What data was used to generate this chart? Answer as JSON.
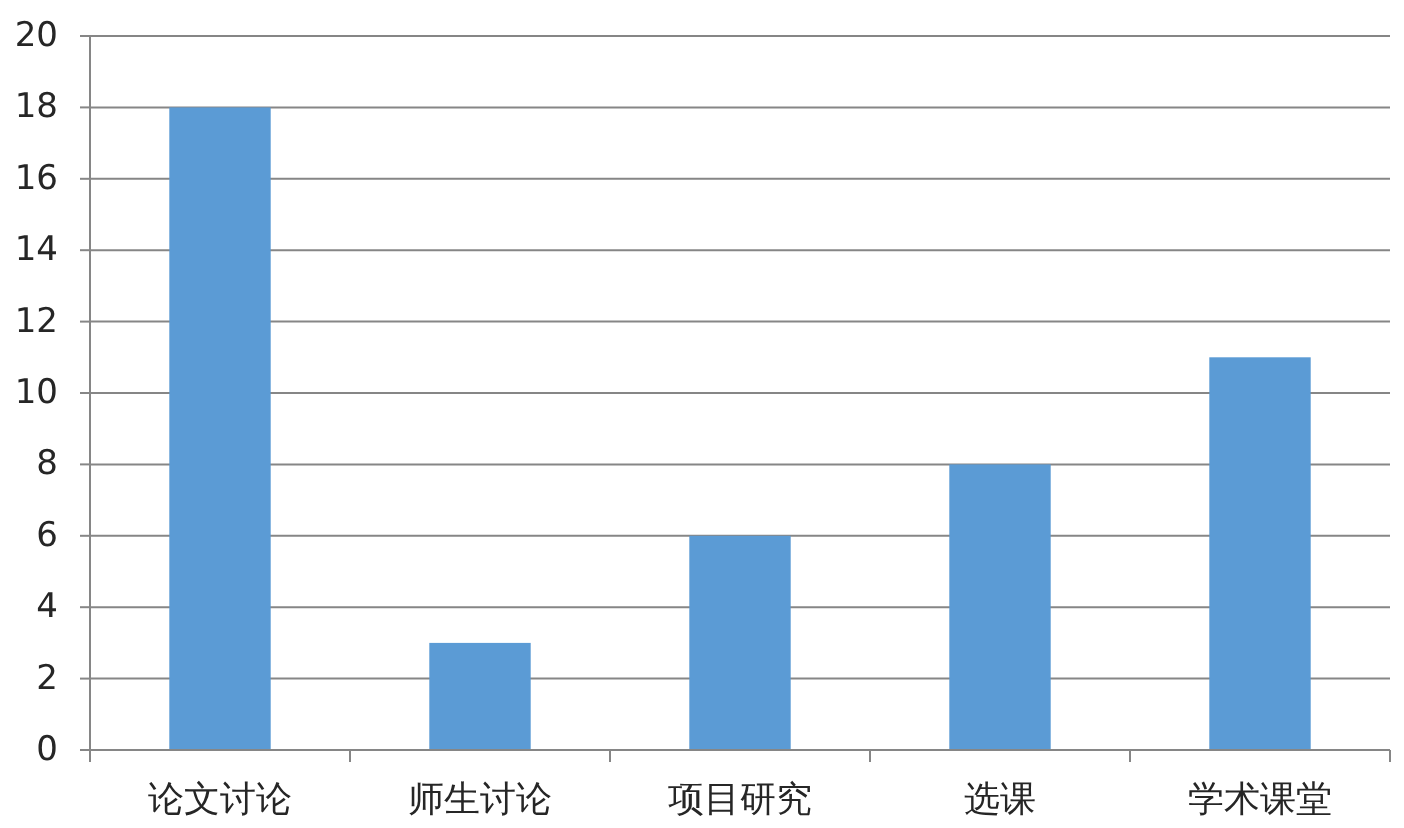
{
  "chart_data": {
    "type": "bar",
    "categories": [
      "论文讨论",
      "师生讨论",
      "项目研究",
      "选课",
      "学术课堂"
    ],
    "values": [
      18,
      3,
      6,
      8,
      11
    ],
    "color": "#5b9bd5",
    "ylim": [
      0,
      20
    ],
    "yticks": [
      0,
      2,
      4,
      6,
      8,
      10,
      12,
      14,
      16,
      18,
      20
    ],
    "grid": "y"
  }
}
